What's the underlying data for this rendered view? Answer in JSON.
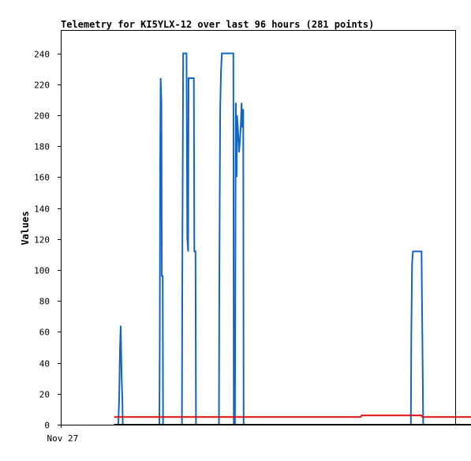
{
  "chart_data": {
    "type": "line",
    "title": "Telemetry for KI5YLX-12 over last 96 hours (281 points)",
    "xlabel": "",
    "ylabel": "Values",
    "x_tick_labels": [
      {
        "x": 0,
        "label": "Nov 27"
      }
    ],
    "xlim": [
      0,
      96
    ],
    "ylim": [
      0,
      255
    ],
    "y_ticks": [
      0,
      20,
      40,
      60,
      80,
      100,
      120,
      140,
      160,
      180,
      200,
      220,
      240
    ],
    "grid": false,
    "legend": "none",
    "series": [
      {
        "color": "#1565c0",
        "points": [
          [
            13.0,
            0
          ],
          [
            14.0,
            0
          ],
          [
            14.2,
            16
          ],
          [
            14.4,
            48
          ],
          [
            14.6,
            64
          ],
          [
            14.8,
            32
          ],
          [
            15.0,
            16
          ],
          [
            15.1,
            0
          ],
          [
            23.5,
            0
          ],
          [
            24.0,
            0
          ],
          [
            24.1,
            56
          ],
          [
            24.2,
            168
          ],
          [
            24.3,
            224
          ],
          [
            24.5,
            208
          ],
          [
            24.6,
            96
          ],
          [
            24.8,
            96
          ],
          [
            24.9,
            0
          ],
          [
            29.3,
            0
          ],
          [
            29.5,
            0
          ],
          [
            29.6,
            120
          ],
          [
            29.8,
            240
          ],
          [
            30.6,
            240
          ],
          [
            30.8,
            120
          ],
          [
            31.0,
            112
          ],
          [
            31.1,
            224
          ],
          [
            32.4,
            224
          ],
          [
            32.5,
            112
          ],
          [
            32.8,
            112
          ],
          [
            32.9,
            0
          ],
          [
            38.3,
            0
          ],
          [
            38.5,
            0
          ],
          [
            38.6,
            96
          ],
          [
            38.8,
            204
          ],
          [
            39.0,
            228
          ],
          [
            39.2,
            240
          ],
          [
            42.0,
            240
          ],
          [
            42.1,
            0
          ],
          [
            42.4,
            0
          ],
          [
            42.5,
            120
          ],
          [
            42.6,
            208
          ],
          [
            42.8,
            160
          ],
          [
            42.9,
            200
          ],
          [
            43.1,
            192
          ],
          [
            43.4,
            176
          ],
          [
            43.6,
            184
          ],
          [
            43.8,
            192
          ],
          [
            44.0,
            208
          ],
          [
            44.2,
            192
          ],
          [
            44.4,
            204
          ],
          [
            44.5,
            0
          ],
          [
            85.0,
            0
          ],
          [
            85.2,
            0
          ],
          [
            85.3,
            56
          ],
          [
            85.5,
            104
          ],
          [
            85.7,
            112
          ],
          [
            87.8,
            112
          ],
          [
            87.9,
            84
          ],
          [
            88.1,
            28
          ],
          [
            88.2,
            0
          ],
          [
            89.0,
            0
          ]
        ]
      },
      {
        "color": "#dd1111",
        "points": [
          [
            13.0,
            5
          ],
          [
            73.0,
            5
          ],
          [
            73.2,
            6
          ],
          [
            87.8,
            6
          ],
          [
            88.0,
            5
          ],
          [
            112.0,
            5
          ]
        ]
      },
      {
        "color": "#000000",
        "points": [
          [
            13.0,
            0
          ],
          [
            112.0,
            0
          ]
        ]
      }
    ]
  }
}
